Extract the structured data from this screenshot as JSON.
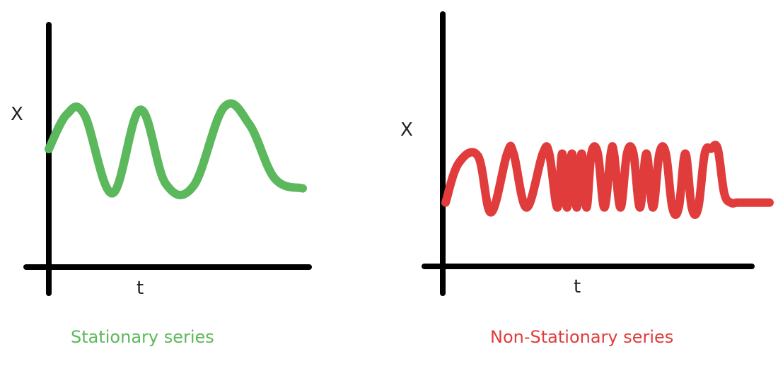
{
  "colors": {
    "axis": "#000000",
    "stationary": "#5cb85c",
    "nonstationary": "#e03c3c",
    "text": "#222222"
  },
  "chart_data": [
    {
      "type": "line",
      "title": "",
      "caption": "Stationary series",
      "xlabel": "t",
      "ylabel": "X",
      "grid": false,
      "series": [
        {
          "x": [
            0.0,
            0.07,
            0.14,
            0.25,
            0.36,
            0.46,
            0.57,
            0.69,
            0.79,
            0.89,
            1.0
          ],
          "y": [
            0.48,
            0.62,
            0.62,
            0.3,
            0.64,
            0.34,
            0.33,
            0.65,
            0.58,
            0.36,
            0.32
          ]
        }
      ]
    },
    {
      "type": "line",
      "title": "",
      "caption": "Non-Stationary series",
      "xlabel": "t",
      "ylabel": "X",
      "grid": false,
      "series": [
        {
          "x": [
            0.0,
            0.04,
            0.1,
            0.14,
            0.19,
            0.21,
            0.25,
            0.3,
            0.32,
            0.345,
            0.36,
            0.375,
            0.39,
            0.405,
            0.42,
            0.435,
            0.45,
            0.47,
            0.49,
            0.51,
            0.52,
            0.54,
            0.56,
            0.58,
            0.6,
            0.62,
            0.64,
            0.66,
            0.68,
            0.7,
            0.72,
            0.74,
            0.76,
            0.78,
            0.8,
            0.82,
            0.84,
            0.86,
            0.88,
            0.9,
            0.93,
            0.97,
            1.0
          ],
          "y": [
            0.26,
            0.42,
            0.45,
            0.22,
            0.46,
            0.46,
            0.24,
            0.46,
            0.46,
            0.24,
            0.46,
            0.24,
            0.46,
            0.24,
            0.46,
            0.24,
            0.46,
            0.46,
            0.24,
            0.46,
            0.46,
            0.24,
            0.46,
            0.46,
            0.24,
            0.46,
            0.24,
            0.46,
            0.46,
            0.24,
            0.24,
            0.46,
            0.24,
            0.24,
            0.46,
            0.48,
            0.48,
            0.3,
            0.26,
            0.26,
            0.26,
            0.26,
            0.26
          ]
        }
      ]
    }
  ]
}
